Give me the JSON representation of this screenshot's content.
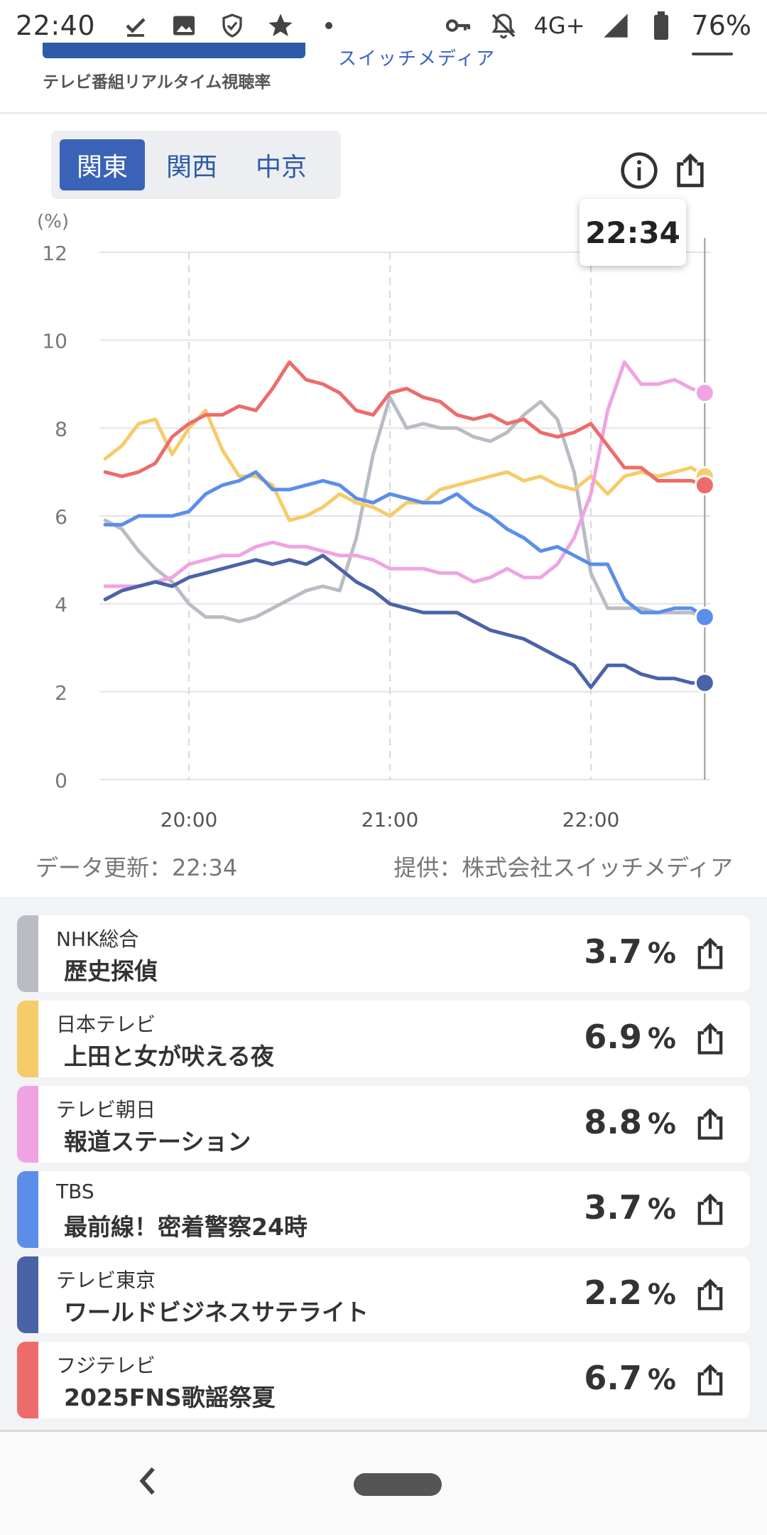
{
  "statusbar": {
    "time": "22:40",
    "network": "4G+",
    "battery_pct": "76%",
    "icons_left": [
      "download-done-icon",
      "image-icon",
      "shield-check-icon",
      "star-icon",
      "dot-icon"
    ],
    "icons_right": [
      "vpn-key-icon",
      "bell-off-icon",
      "signal-icon",
      "battery-icon"
    ]
  },
  "header": {
    "subtitle": "テレビ番組リアルタイム視聴率",
    "company": "スイッチメディア"
  },
  "tabs": [
    {
      "label": "関東",
      "active": true
    },
    {
      "label": "関西",
      "active": false
    },
    {
      "label": "中京",
      "active": false
    }
  ],
  "tooltip": {
    "time": "22:34"
  },
  "chart_data": {
    "type": "line",
    "ylabel": "(%)",
    "ylim": [
      0,
      12
    ],
    "yticks": [
      "0",
      "2",
      "4",
      "6",
      "8",
      "10",
      "12"
    ],
    "xticks": [
      "20:00",
      "21:00",
      "22:00"
    ],
    "x_start": "19:35",
    "x_end": "22:34",
    "grid": true,
    "series": [
      {
        "name": "NHK総合",
        "color": "#b9bcc3",
        "x": [
          "19:35",
          "19:40",
          "19:45",
          "19:50",
          "19:55",
          "20:00",
          "20:05",
          "20:10",
          "20:15",
          "20:20",
          "20:25",
          "20:30",
          "20:35",
          "20:40",
          "20:45",
          "20:50",
          "20:55",
          "21:00",
          "21:05",
          "21:10",
          "21:15",
          "21:20",
          "21:25",
          "21:30",
          "21:35",
          "21:40",
          "21:45",
          "21:50",
          "21:55",
          "22:00",
          "22:05",
          "22:10",
          "22:15",
          "22:20",
          "22:25",
          "22:30",
          "22:34"
        ],
        "values": [
          5.9,
          5.7,
          5.2,
          4.8,
          4.5,
          4.0,
          3.7,
          3.7,
          3.6,
          3.7,
          3.9,
          4.1,
          4.3,
          4.4,
          4.3,
          5.5,
          7.4,
          8.7,
          8.0,
          8.1,
          8.0,
          8.0,
          7.8,
          7.7,
          7.9,
          8.3,
          8.6,
          8.2,
          7.0,
          4.7,
          3.9,
          3.9,
          3.9,
          3.8,
          3.8,
          3.8,
          3.7
        ]
      },
      {
        "name": "日本テレビ",
        "color": "#f6cb6a",
        "x": [
          "19:35",
          "19:40",
          "19:45",
          "19:50",
          "19:55",
          "20:00",
          "20:05",
          "20:10",
          "20:15",
          "20:20",
          "20:25",
          "20:30",
          "20:35",
          "20:40",
          "20:45",
          "20:50",
          "20:55",
          "21:00",
          "21:05",
          "21:10",
          "21:15",
          "21:20",
          "21:25",
          "21:30",
          "21:35",
          "21:40",
          "21:45",
          "21:50",
          "21:55",
          "22:00",
          "22:05",
          "22:10",
          "22:15",
          "22:20",
          "22:25",
          "22:30",
          "22:34"
        ],
        "values": [
          7.3,
          7.6,
          8.1,
          8.2,
          7.4,
          8.0,
          8.4,
          7.5,
          6.9,
          6.9,
          6.7,
          5.9,
          6.0,
          6.2,
          6.5,
          6.3,
          6.2,
          6.0,
          6.3,
          6.3,
          6.6,
          6.7,
          6.8,
          6.9,
          7.0,
          6.8,
          6.9,
          6.7,
          6.6,
          6.9,
          6.5,
          6.9,
          7.0,
          6.9,
          7.0,
          7.1,
          6.9
        ]
      },
      {
        "name": "テレビ朝日",
        "color": "#f0a3e2",
        "x": [
          "19:35",
          "19:40",
          "19:45",
          "19:50",
          "19:55",
          "20:00",
          "20:05",
          "20:10",
          "20:15",
          "20:20",
          "20:25",
          "20:30",
          "20:35",
          "20:40",
          "20:45",
          "20:50",
          "20:55",
          "21:00",
          "21:05",
          "21:10",
          "21:15",
          "21:20",
          "21:25",
          "21:30",
          "21:35",
          "21:40",
          "21:45",
          "21:50",
          "21:55",
          "22:00",
          "22:05",
          "22:10",
          "22:15",
          "22:20",
          "22:25",
          "22:30",
          "22:34"
        ],
        "values": [
          4.4,
          4.4,
          4.4,
          4.5,
          4.6,
          4.9,
          5.0,
          5.1,
          5.1,
          5.3,
          5.4,
          5.3,
          5.3,
          5.2,
          5.1,
          5.1,
          5.0,
          4.8,
          4.8,
          4.8,
          4.7,
          4.7,
          4.5,
          4.6,
          4.8,
          4.6,
          4.6,
          4.9,
          5.5,
          6.5,
          8.4,
          9.5,
          9.0,
          9.0,
          9.1,
          8.9,
          8.8
        ]
      },
      {
        "name": "TBS",
        "color": "#5b8ee8",
        "x": [
          "19:35",
          "19:40",
          "19:45",
          "19:50",
          "19:55",
          "20:00",
          "20:05",
          "20:10",
          "20:15",
          "20:20",
          "20:25",
          "20:30",
          "20:35",
          "20:40",
          "20:45",
          "20:50",
          "20:55",
          "21:00",
          "21:05",
          "21:10",
          "21:15",
          "21:20",
          "21:25",
          "21:30",
          "21:35",
          "21:40",
          "21:45",
          "21:50",
          "21:55",
          "22:00",
          "22:05",
          "22:10",
          "22:15",
          "22:20",
          "22:25",
          "22:30",
          "22:34"
        ],
        "values": [
          5.8,
          5.8,
          6.0,
          6.0,
          6.0,
          6.1,
          6.5,
          6.7,
          6.8,
          7.0,
          6.6,
          6.6,
          6.7,
          6.8,
          6.7,
          6.4,
          6.3,
          6.5,
          6.4,
          6.3,
          6.3,
          6.5,
          6.2,
          6.0,
          5.7,
          5.5,
          5.2,
          5.3,
          5.1,
          4.9,
          4.9,
          4.1,
          3.8,
          3.8,
          3.9,
          3.9,
          3.7
        ]
      },
      {
        "name": "テレビ東京",
        "color": "#4a63a8",
        "x": [
          "19:35",
          "19:40",
          "19:45",
          "19:50",
          "19:55",
          "20:00",
          "20:05",
          "20:10",
          "20:15",
          "20:20",
          "20:25",
          "20:30",
          "20:35",
          "20:40",
          "20:45",
          "20:50",
          "20:55",
          "21:00",
          "21:05",
          "21:10",
          "21:15",
          "21:20",
          "21:25",
          "21:30",
          "21:35",
          "21:40",
          "21:45",
          "21:50",
          "21:55",
          "22:00",
          "22:05",
          "22:10",
          "22:15",
          "22:20",
          "22:25",
          "22:30",
          "22:34"
        ],
        "values": [
          4.1,
          4.3,
          4.4,
          4.5,
          4.4,
          4.6,
          4.7,
          4.8,
          4.9,
          5.0,
          4.9,
          5.0,
          4.9,
          5.1,
          4.8,
          4.5,
          4.3,
          4.0,
          3.9,
          3.8,
          3.8,
          3.8,
          3.6,
          3.4,
          3.3,
          3.2,
          3.0,
          2.8,
          2.6,
          2.1,
          2.6,
          2.6,
          2.4,
          2.3,
          2.3,
          2.2,
          2.2
        ]
      },
      {
        "name": "フジテレビ",
        "color": "#ee6b6b",
        "x": [
          "19:35",
          "19:40",
          "19:45",
          "19:50",
          "19:55",
          "20:00",
          "20:05",
          "20:10",
          "20:15",
          "20:20",
          "20:25",
          "20:30",
          "20:35",
          "20:40",
          "20:45",
          "20:50",
          "20:55",
          "21:00",
          "21:05",
          "21:10",
          "21:15",
          "21:20",
          "21:25",
          "21:30",
          "21:35",
          "21:40",
          "21:45",
          "21:50",
          "21:55",
          "22:00",
          "22:05",
          "22:10",
          "22:15",
          "22:20",
          "22:25",
          "22:30",
          "22:34"
        ],
        "values": [
          7.0,
          6.9,
          7.0,
          7.2,
          7.8,
          8.1,
          8.3,
          8.3,
          8.5,
          8.4,
          8.9,
          9.5,
          9.1,
          9.0,
          8.8,
          8.4,
          8.3,
          8.8,
          8.9,
          8.7,
          8.6,
          8.3,
          8.2,
          8.3,
          8.1,
          8.2,
          7.9,
          7.8,
          7.9,
          8.1,
          7.6,
          7.1,
          7.1,
          6.8,
          6.8,
          6.8,
          6.7
        ]
      }
    ]
  },
  "footer": {
    "updated": "データ更新：22:34",
    "provider": "提供：株式会社スイッチメディア"
  },
  "ratings": [
    {
      "channel": "NHK総合",
      "program": "歴史探偵",
      "value": "3.7",
      "unit": "%",
      "color": "#b9bcc3"
    },
    {
      "channel": "日本テレビ",
      "program": "上田と女が吠える夜",
      "value": "6.9",
      "unit": "%",
      "color": "#f6cb6a"
    },
    {
      "channel": "テレビ朝日",
      "program": "報道ステーション",
      "value": "8.8",
      "unit": "%",
      "color": "#f0a3e2"
    },
    {
      "channel": "TBS",
      "program": "最前線！密着警察24時",
      "value": "3.7",
      "unit": "%",
      "color": "#5b8ee8"
    },
    {
      "channel": "テレビ東京",
      "program": "ワールドビジネスサテライト",
      "value": "2.2",
      "unit": "%",
      "color": "#4a63a8"
    },
    {
      "channel": "フジテレビ",
      "program": "2025FNS歌謡祭夏",
      "value": "6.7",
      "unit": "%",
      "color": "#ee6b6b"
    }
  ]
}
